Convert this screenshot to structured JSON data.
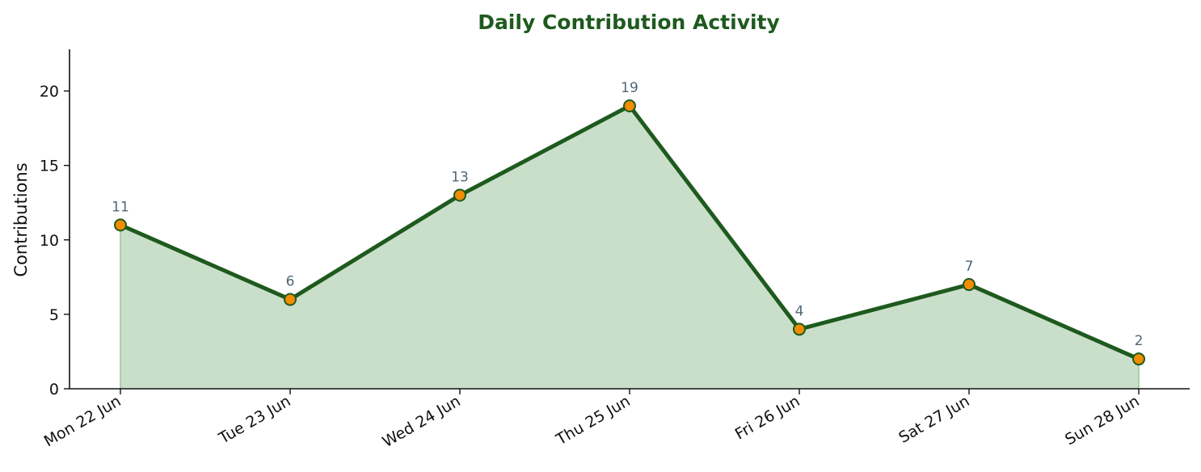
{
  "chart_data": {
    "type": "area",
    "title": "Daily Contribution Activity",
    "xlabel": "",
    "ylabel": "Contributions",
    "categories": [
      "Mon 22 Jun",
      "Tue 23 Jun",
      "Wed 24 Jun",
      "Thu 25 Jun",
      "Fri 26 Jun",
      "Sat 27 Jun",
      "Sun 28 Jun"
    ],
    "series": [
      {
        "values": [
          11,
          6,
          13,
          19,
          4,
          7,
          2
        ]
      }
    ],
    "ylim": [
      0,
      22.8
    ],
    "yticks": [
      0,
      5,
      10,
      15,
      20
    ],
    "grid": false,
    "legend": "none",
    "data_labels": true,
    "colors": {
      "title": "#1e5a1e",
      "line": "#1e5a1e",
      "fill": "#cadfca",
      "fill_edge": "#9cc39c",
      "marker": "#f28c00",
      "marker_edge": "#1e5a1e",
      "data_label": "#4f6678",
      "axis": "#111111"
    }
  }
}
